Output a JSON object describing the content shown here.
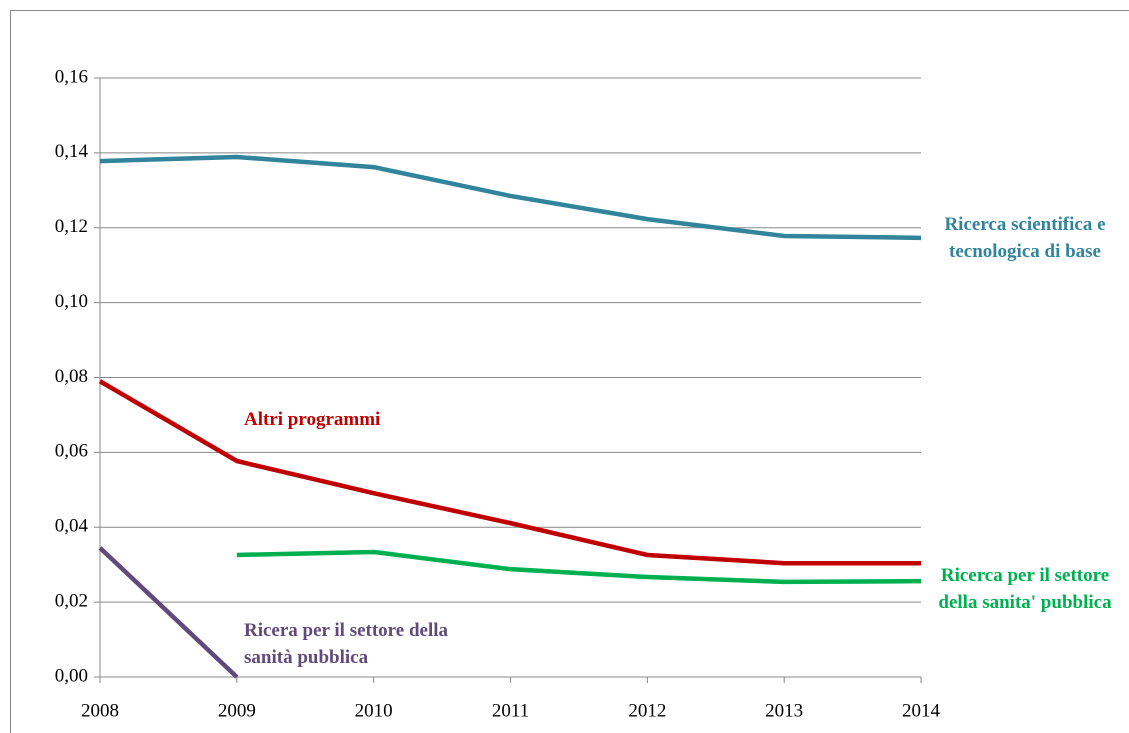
{
  "chart_data": {
    "type": "line",
    "x": [
      2008,
      2009,
      2010,
      2011,
      2012,
      2013,
      2014
    ],
    "xlim": [
      2008,
      2014
    ],
    "xticks": [
      2008,
      2009,
      2010,
      2011,
      2012,
      2013,
      2014
    ],
    "ylim": [
      0,
      0.16
    ],
    "yticks": [
      {
        "value": 0,
        "label": "0,00"
      },
      {
        "value": 0.02,
        "label": "0,02"
      },
      {
        "value": 0.04,
        "label": "0,04"
      },
      {
        "value": 0.06,
        "label": "0,06"
      },
      {
        "value": 0.08,
        "label": "0,08"
      },
      {
        "value": 0.1,
        "label": "0,10"
      },
      {
        "value": 0.12,
        "label": "0,12"
      },
      {
        "value": 0.14,
        "label": "0,14"
      },
      {
        "value": 0.16,
        "label": "0,16"
      }
    ],
    "grid": true,
    "series": [
      {
        "name": "Ricerca scientifica e tecnologica di base",
        "color": "#31849b",
        "values": [
          0.1378,
          0.1389,
          0.1362,
          0.1285,
          0.1223,
          0.1178,
          0.1173
        ]
      },
      {
        "name": "Altri programmi",
        "color": "#c00000",
        "values": [
          0.079,
          0.0577,
          0.0491,
          0.0411,
          0.0326,
          0.0304,
          0.0304
        ]
      },
      {
        "name": "Ricerca per il settore della sanita' pubblica",
        "color": "#00b050",
        "values": [
          null,
          0.0326,
          0.0334,
          0.0288,
          0.0267,
          0.0254,
          0.0256
        ]
      },
      {
        "name": "Ricera per il settore della sanità pubblica",
        "color": "#604a7b",
        "values": [
          0.0345,
          0,
          null,
          null,
          null,
          null,
          null
        ]
      }
    ]
  }
}
